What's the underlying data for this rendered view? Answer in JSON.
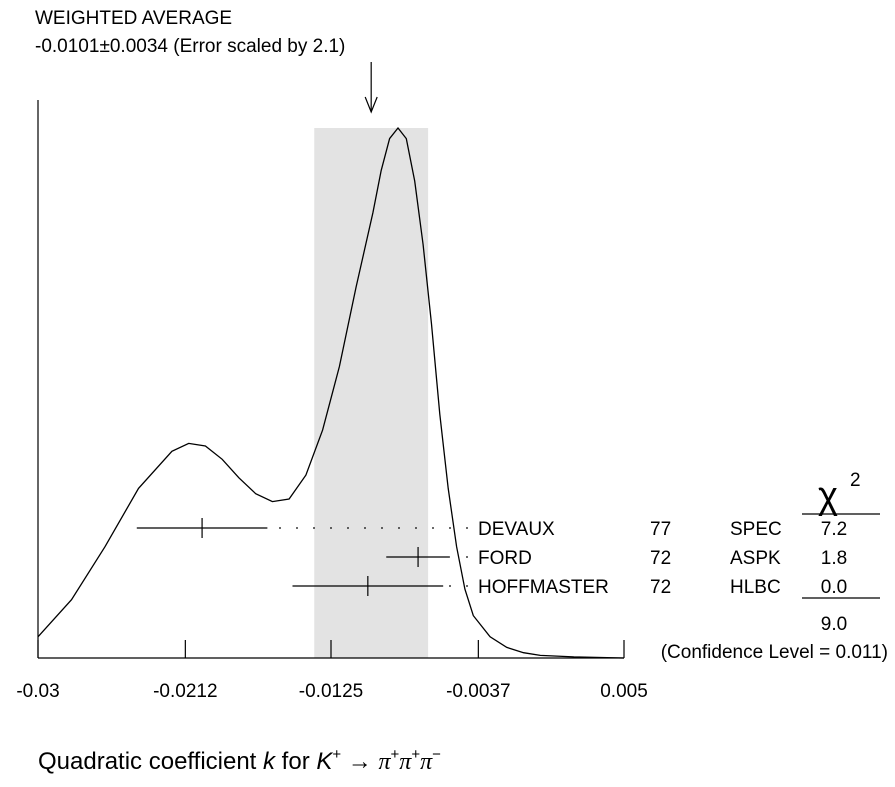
{
  "header": {
    "title": "WEIGHTED AVERAGE",
    "value_line": "-0.0101±0.0034 (Error scaled by 2.1)"
  },
  "chart_data": {
    "type": "scatter",
    "weighted_average": {
      "value": -0.0101,
      "error": 0.0034,
      "error_scale": 2.1
    },
    "x_ticks": [
      -0.03,
      -0.0212,
      -0.0125,
      -0.0037,
      0.005
    ],
    "x_tick_labels": [
      "-0.03",
      "-0.0212",
      "-0.0125",
      "-0.0037",
      "0.005"
    ],
    "xlim": [
      -0.03,
      0.005
    ],
    "xlabel": {
      "prefix": "Quadratic coefficient ",
      "var": "k",
      "mid": " for ",
      "particle": "K",
      "particle_sup": "+",
      "arrow": " → ",
      "decay": [
        {
          "base": "π",
          "sup": "+"
        },
        {
          "base": "π",
          "sup": "+"
        },
        {
          "base": "π",
          "sup": "−"
        }
      ]
    },
    "measurements": [
      {
        "author": "DEVAUX",
        "year": "77",
        "technique": "SPEC",
        "chi2": "7.2",
        "value": -0.0202,
        "error": 0.0039
      },
      {
        "author": "FORD",
        "year": "72",
        "technique": "ASPK",
        "chi2": "1.8",
        "value": -0.0073,
        "error": 0.0019
      },
      {
        "author": "HOFFMASTER",
        "year": "72",
        "technique": "HLBC",
        "chi2": "0.0",
        "value": -0.0103,
        "error": 0.0045
      }
    ],
    "chi2_symbol": "χ",
    "chi2_exponent": "2",
    "chi2_total": "9.0",
    "confidence_level": "(Confidence Level = 0.011)",
    "ideogram": {
      "x": [
        -0.03,
        -0.028,
        -0.026,
        -0.024,
        -0.022,
        -0.021,
        -0.02,
        -0.019,
        -0.018,
        -0.017,
        -0.016,
        -0.015,
        -0.014,
        -0.013,
        -0.012,
        -0.011,
        -0.01,
        -0.0095,
        -0.009,
        -0.0085,
        -0.008,
        -0.0075,
        -0.007,
        -0.0065,
        -0.006,
        -0.0055,
        -0.005,
        -0.0045,
        -0.004,
        -0.003,
        -0.002,
        -0.001,
        0.0,
        0.002,
        0.005
      ],
      "y": [
        0.04,
        0.11,
        0.21,
        0.32,
        0.39,
        0.405,
        0.4,
        0.375,
        0.34,
        0.31,
        0.295,
        0.3,
        0.345,
        0.43,
        0.55,
        0.7,
        0.84,
        0.92,
        0.98,
        1.0,
        0.98,
        0.9,
        0.78,
        0.63,
        0.46,
        0.32,
        0.21,
        0.13,
        0.08,
        0.04,
        0.02,
        0.01,
        0.005,
        0.002,
        0.0
      ]
    }
  }
}
